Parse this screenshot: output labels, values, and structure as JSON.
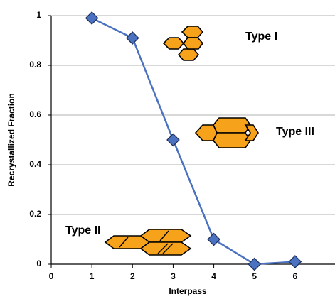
{
  "chart_data": {
    "type": "line",
    "x_label": "Interpass",
    "y_label": "Recrystallized Fraction",
    "x": [
      1,
      2,
      3,
      4,
      5,
      6
    ],
    "series": [
      {
        "name": "Recrystallized Fraction",
        "color": "#4a72c0",
        "values": [
          0.99,
          0.91,
          0.5,
          0.1,
          0,
          0.01
        ]
      }
    ],
    "xlim": [
      0,
      7
    ],
    "xticks": [
      0,
      1,
      2,
      3,
      4,
      5,
      6
    ],
    "ylim": [
      0,
      1
    ],
    "yticks": [
      0,
      0.2,
      0.4,
      0.6,
      0.8,
      1
    ],
    "grid": true,
    "annotations": [
      "Type I",
      "Type III",
      "Type II"
    ]
  }
}
